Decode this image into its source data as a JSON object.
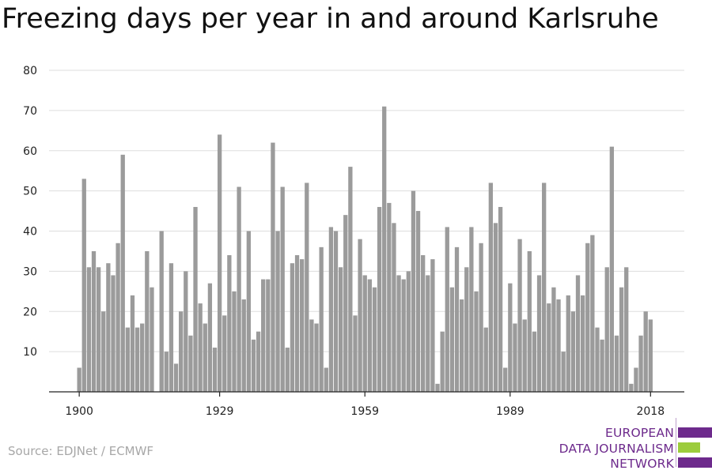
{
  "chart_data": {
    "type": "bar",
    "title": "Freezing days per year in and around Karlsruhe",
    "xlabel": "",
    "ylabel": "",
    "ylim": [
      0,
      80
    ],
    "yticks": [
      10,
      20,
      30,
      40,
      50,
      60,
      70,
      80
    ],
    "grid": true,
    "bar_color": "#9b9b9b",
    "x_start": 1900,
    "x_end": 2018,
    "xticks": [
      1900,
      1929,
      1959,
      1989,
      2018
    ],
    "values": [
      6,
      53,
      31,
      35,
      31,
      20,
      32,
      29,
      37,
      59,
      16,
      24,
      16,
      17,
      35,
      26,
      0,
      40,
      10,
      32,
      7,
      20,
      30,
      14,
      46,
      22,
      17,
      27,
      11,
      64,
      19,
      34,
      25,
      51,
      23,
      40,
      13,
      15,
      28,
      28,
      62,
      40,
      51,
      11,
      32,
      34,
      33,
      52,
      18,
      17,
      36,
      6,
      41,
      40,
      31,
      44,
      56,
      19,
      38,
      29,
      28,
      26,
      46,
      71,
      47,
      42,
      29,
      28,
      30,
      50,
      45,
      34,
      29,
      33,
      2,
      15,
      41,
      26,
      36,
      23,
      31,
      41,
      25,
      37,
      16,
      52,
      42,
      46,
      6,
      27,
      17,
      38,
      18,
      35,
      15,
      29,
      52,
      22,
      26,
      23,
      10,
      24,
      20,
      29,
      24,
      37,
      39,
      16,
      13,
      31,
      61,
      14,
      26,
      31,
      2,
      6,
      14,
      20,
      18
    ]
  },
  "source": "Source: EDJNet / ECMWF",
  "logo": {
    "lines": [
      "EUROPEAN",
      "DATA JOURNALISM",
      "NETWORK"
    ],
    "purple": "#6d2a8c",
    "green": "#9ccc3c"
  }
}
